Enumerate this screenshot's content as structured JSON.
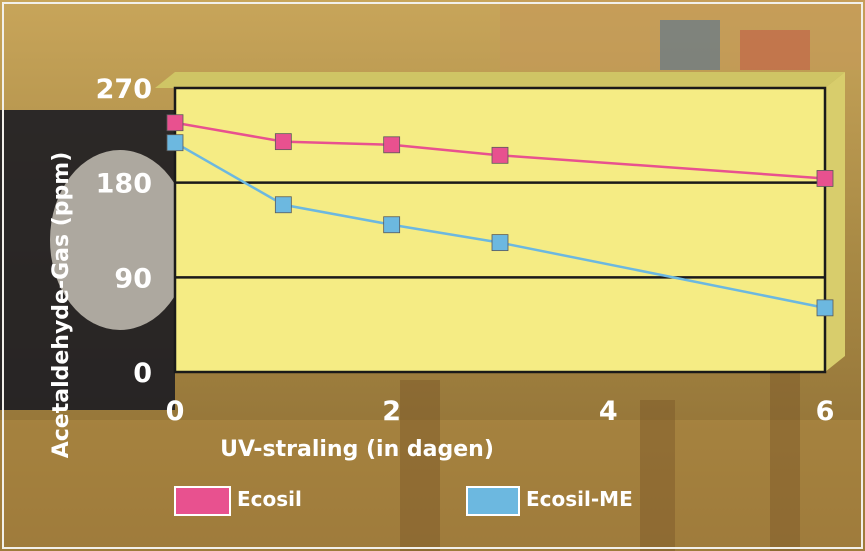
{
  "chart_data": {
    "type": "line",
    "xlabel": "UV-straling (in dagen)",
    "ylabel": "Acetaldehyde-Gas (ppm)",
    "xlim": [
      0,
      6
    ],
    "ylim": [
      0,
      270
    ],
    "x_ticks": [
      "0",
      "2",
      "4",
      "6"
    ],
    "y_ticks": [
      "0",
      "90",
      "180",
      "270"
    ],
    "grid": "horizontal",
    "legend_position": "bottom",
    "plot_background": "#f5ec84",
    "series": [
      {
        "name": "Ecosil",
        "color": "#e8518f",
        "x": [
          0,
          1,
          2,
          3,
          6
        ],
        "values": [
          237,
          219,
          216,
          206,
          184
        ]
      },
      {
        "name": "Ecosil-ME",
        "color": "#6cb8e0",
        "x": [
          0,
          1,
          2,
          3,
          6
        ],
        "values": [
          218,
          159,
          140,
          123,
          61
        ]
      }
    ]
  }
}
